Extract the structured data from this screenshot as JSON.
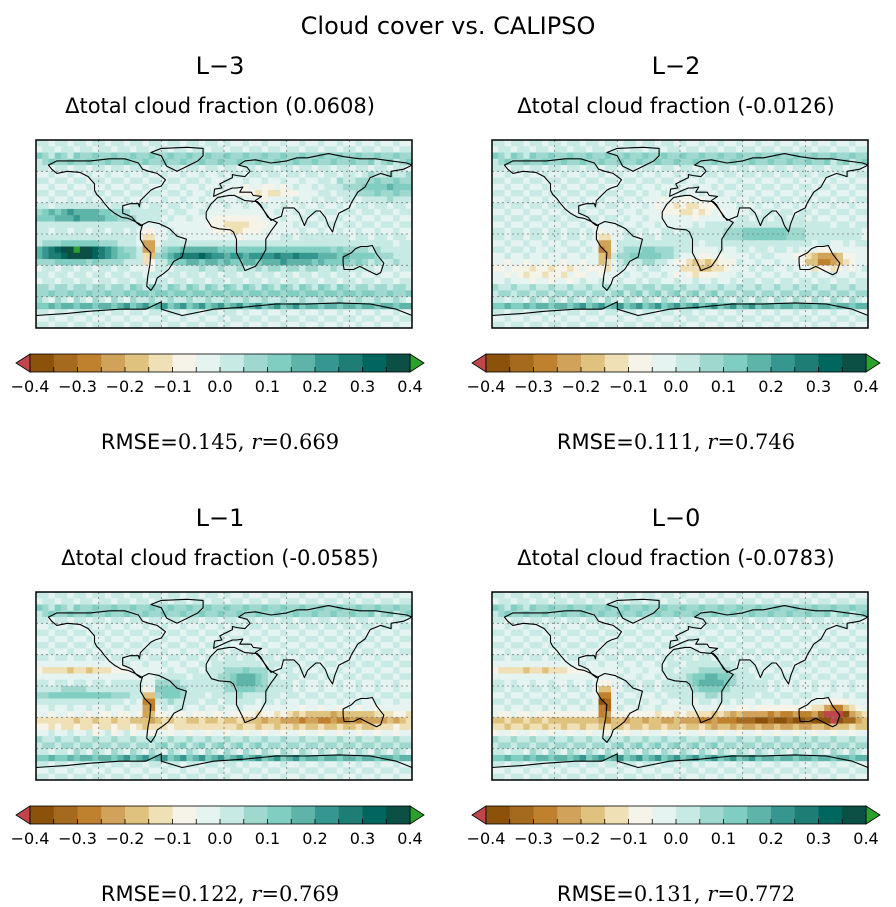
{
  "figure_title": "Cloud cover vs. CALIPSO",
  "colors": {
    "colormap": [
      "#c0464b",
      "#8c510a",
      "#a66a1f",
      "#bf812d",
      "#d1a35a",
      "#dfc27d",
      "#efe0b6",
      "#f6f3e9",
      "#e5f3f1",
      "#c7eae5",
      "#9ed8cf",
      "#80cdc1",
      "#5fb4a9",
      "#35978f",
      "#1e7d75",
      "#01665e",
      "#0b4f45",
      "#2ca02c"
    ],
    "land": "#000000",
    "grid": "#808080"
  },
  "colorbar": {
    "ticks": [
      "−0.4",
      "−0.3",
      "−0.2",
      "−0.1",
      "0.0",
      "0.1",
      "0.2",
      "0.3",
      "0.4"
    ]
  },
  "panels": [
    {
      "label": "L−3",
      "subtitle": "Δtotal cloud fraction (0.0608)",
      "rmse_label": "RMSE=",
      "rmse": "0.145,",
      "r_label": "r",
      "r_eq": "=",
      "r": "0.669"
    },
    {
      "label": "L−2",
      "subtitle": "Δtotal cloud fraction (-0.0126)",
      "rmse_label": "RMSE=",
      "rmse": "0.111,",
      "r_label": "r",
      "r_eq": "=",
      "r": "0.746"
    },
    {
      "label": "L−1",
      "subtitle": "Δtotal cloud fraction (-0.0585)",
      "rmse_label": "RMSE=",
      "rmse": "0.122,",
      "r_label": "r",
      "r_eq": "=",
      "r": "0.769"
    },
    {
      "label": "L−0",
      "subtitle": "Δtotal cloud fraction (-0.0783)",
      "rmse_label": "RMSE=",
      "rmse": "0.131,",
      "r_label": "r",
      "r_eq": "=",
      "r": "0.772"
    }
  ],
  "chart_data": [
    {
      "type": "heatmap",
      "title": "L−3",
      "subtitle": "Δtotal cloud fraction (0.0608)",
      "global_mean_bias": 0.0608,
      "rmse": 0.145,
      "r": 0.669,
      "colorbar_range": [
        -0.4,
        0.4
      ],
      "colorbar_ticks": [
        -0.4,
        -0.3,
        -0.2,
        -0.1,
        0.0,
        0.1,
        0.2,
        0.3,
        0.4
      ],
      "extend": "both"
    },
    {
      "type": "heatmap",
      "title": "L−2",
      "subtitle": "Δtotal cloud fraction (-0.0126)",
      "global_mean_bias": -0.0126,
      "rmse": 0.111,
      "r": 0.746,
      "colorbar_range": [
        -0.4,
        0.4
      ],
      "colorbar_ticks": [
        -0.4,
        -0.3,
        -0.2,
        -0.1,
        0.0,
        0.1,
        0.2,
        0.3,
        0.4
      ],
      "extend": "both"
    },
    {
      "type": "heatmap",
      "title": "L−1",
      "subtitle": "Δtotal cloud fraction (-0.0585)",
      "global_mean_bias": -0.0585,
      "rmse": 0.122,
      "r": 0.769,
      "colorbar_range": [
        -0.4,
        0.4
      ],
      "colorbar_ticks": [
        -0.4,
        -0.3,
        -0.2,
        -0.1,
        0.0,
        0.1,
        0.2,
        0.3,
        0.4
      ],
      "extend": "both"
    },
    {
      "type": "heatmap",
      "title": "L−0",
      "subtitle": "Δtotal cloud fraction (-0.0783)",
      "global_mean_bias": -0.0783,
      "rmse": 0.131,
      "r": 0.772,
      "colorbar_range": [
        -0.4,
        0.4
      ],
      "colorbar_ticks": [
        -0.4,
        -0.3,
        -0.2,
        -0.1,
        0.0,
        0.1,
        0.2,
        0.3,
        0.4
      ],
      "extend": "both"
    }
  ]
}
